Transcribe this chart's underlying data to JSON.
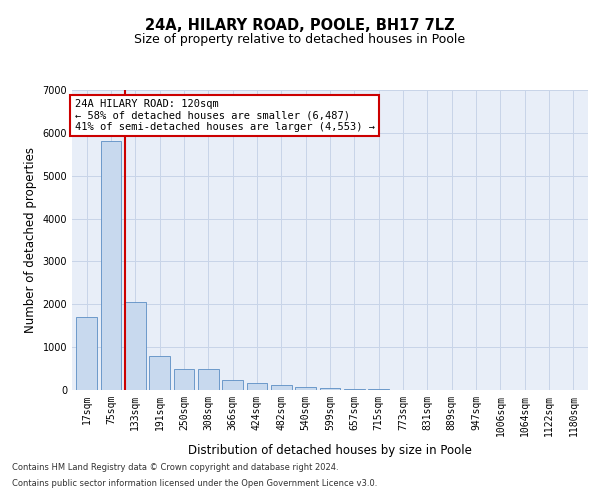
{
  "title": "24A, HILARY ROAD, POOLE, BH17 7LZ",
  "subtitle": "Size of property relative to detached houses in Poole",
  "xlabel": "Distribution of detached houses by size in Poole",
  "ylabel": "Number of detached properties",
  "footnote1": "Contains HM Land Registry data © Crown copyright and database right 2024.",
  "footnote2": "Contains public sector information licensed under the Open Government Licence v3.0.",
  "categories": [
    "17sqm",
    "75sqm",
    "133sqm",
    "191sqm",
    "250sqm",
    "308sqm",
    "366sqm",
    "424sqm",
    "482sqm",
    "540sqm",
    "599sqm",
    "657sqm",
    "715sqm",
    "773sqm",
    "831sqm",
    "889sqm",
    "947sqm",
    "1006sqm",
    "1064sqm",
    "1122sqm",
    "1180sqm"
  ],
  "values": [
    1700,
    5800,
    2060,
    800,
    490,
    490,
    230,
    155,
    110,
    70,
    50,
    30,
    20,
    10,
    5,
    3,
    2,
    2,
    1,
    1,
    0
  ],
  "bar_color": "#c8d9ee",
  "bar_edge_color": "#5b8ec4",
  "highlight_index": 2,
  "highlight_line_color": "#cc0000",
  "highlight_label": "24A HILARY ROAD: 120sqm",
  "arrow_left_text": "← 58% of detached houses are smaller (6,487)",
  "arrow_right_text": "41% of semi-detached houses are larger (4,553) →",
  "annotation_box_edge": "#cc0000",
  "ylim": [
    0,
    7000
  ],
  "yticks": [
    0,
    1000,
    2000,
    3000,
    4000,
    5000,
    6000,
    7000
  ],
  "grid_color": "#c8d4e8",
  "background_color": "#e8eef8",
  "title_fontsize": 10.5,
  "subtitle_fontsize": 9,
  "axis_label_fontsize": 8.5,
  "tick_fontsize": 7,
  "annotation_fontsize": 7.5,
  "footnote_fontsize": 6
}
